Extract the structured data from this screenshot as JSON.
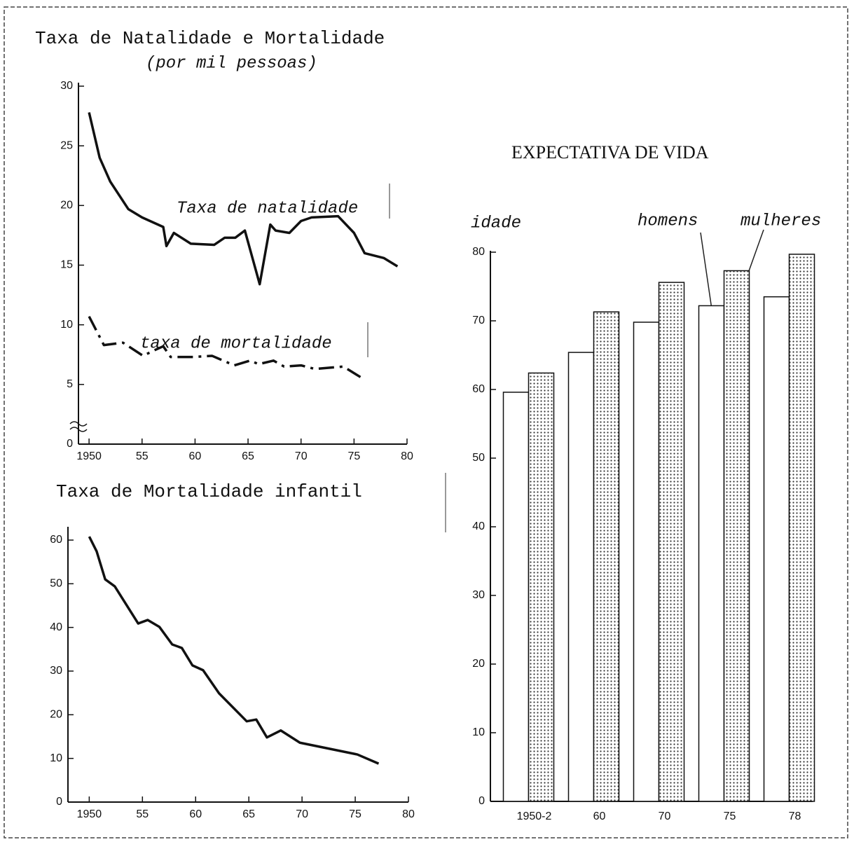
{
  "chart_data": [
    {
      "type": "line",
      "title": "Taxa de Natalidade e Mortalidade",
      "subtitle": "(por mil pessoas)",
      "xlim": [
        1949,
        1980
      ],
      "xticks": [
        1950,
        {
          "value": 1955,
          "label": "55"
        },
        {
          "value": 1960,
          "label": "60"
        },
        {
          "value": 1965,
          "label": "65"
        },
        {
          "value": 1970,
          "label": "70"
        },
        {
          "value": 1975,
          "label": "75"
        },
        {
          "value": 1980,
          "label": "80"
        }
      ],
      "ylim": [
        0,
        30
      ],
      "yticks": [
        0,
        5,
        10,
        15,
        20,
        25,
        30
      ],
      "series": [
        {
          "name": "Taxa de natalidade",
          "color": "#111111",
          "style": "solid",
          "x": [
            1950,
            1951,
            1952,
            1953.7,
            1955,
            1957,
            1957.3,
            1958,
            1959.6,
            1961.8,
            1962.8,
            1963.8,
            1964.7,
            1966.1,
            1967.1,
            1967.6,
            1968.9,
            1970,
            1971,
            1973.5,
            1975,
            1976,
            1977.8,
            1979.1
          ],
          "values": [
            27.8,
            24.0,
            22.0,
            19.7,
            19.0,
            18.2,
            16.6,
            17.7,
            16.8,
            16.7,
            17.3,
            17.3,
            17.9,
            13.4,
            18.4,
            17.9,
            17.7,
            18.7,
            19.0,
            19.1,
            17.7,
            16.0,
            15.6,
            14.9
          ]
        },
        {
          "name": "taxa de mortalidade",
          "color": "#111111",
          "style": "dashdot",
          "x": [
            1950,
            1951.4,
            1953.2,
            1955.1,
            1956,
            1957,
            1957.7,
            1959.8,
            1961.6,
            1963.7,
            1965.2,
            1966,
            1967.4,
            1968.4,
            1970,
            1971.3,
            1974,
            1976
          ],
          "values": [
            10.7,
            8.3,
            8.5,
            7.4,
            7.8,
            8.2,
            7.3,
            7.3,
            7.4,
            6.6,
            7.0,
            6.7,
            7.0,
            6.5,
            6.6,
            6.3,
            6.5,
            5.4
          ]
        }
      ]
    },
    {
      "type": "line",
      "title": "Taxa de Mortalidade infantil",
      "xlim": [
        1948,
        1980
      ],
      "xticks": [
        1950,
        {
          "value": 1955,
          "label": "55"
        },
        {
          "value": 1960,
          "label": "60"
        },
        {
          "value": 1965,
          "label": "65"
        },
        {
          "value": 1970,
          "label": "70"
        },
        {
          "value": 1975,
          "label": "75"
        },
        {
          "value": 1980,
          "label": "80"
        }
      ],
      "ylim": [
        0,
        60
      ],
      "yticks": [
        0,
        10,
        20,
        30,
        40,
        50,
        60
      ],
      "series": [
        {
          "color": "#111111",
          "style": "solid",
          "x": [
            1950,
            1950.7,
            1951.5,
            1952.4,
            1954.6,
            1955.5,
            1956.6,
            1957.8,
            1958.7,
            1959.7,
            1960.7,
            1962.2,
            1964.8,
            1965.7,
            1966.7,
            1968,
            1969.8,
            1975.2,
            1977.2
          ],
          "values": [
            60.8,
            57.4,
            51.0,
            49.4,
            40.9,
            41.7,
            40.1,
            36.1,
            35.3,
            31.3,
            30.2,
            24.9,
            18.5,
            18.9,
            14.8,
            16.4,
            13.6,
            10.9,
            8.8
          ]
        }
      ]
    },
    {
      "type": "bar",
      "title": "EXPECTATIVA DE VIDA",
      "y_label": "idade",
      "categories": [
        "1950-2",
        "60",
        "70",
        "75",
        "78"
      ],
      "ylim": [
        0,
        80
      ],
      "yticks": [
        0,
        10,
        20,
        30,
        40,
        50,
        60,
        70,
        80
      ],
      "series": [
        {
          "name": "homens",
          "color": "#ffffff",
          "pattern": "none",
          "values": [
            59.6,
            65.4,
            69.8,
            72.2,
            73.5
          ]
        },
        {
          "name": "mulheres",
          "color": "#ffffff",
          "pattern": "dots",
          "values": [
            62.4,
            71.3,
            75.6,
            77.3,
            79.7
          ]
        }
      ]
    }
  ]
}
